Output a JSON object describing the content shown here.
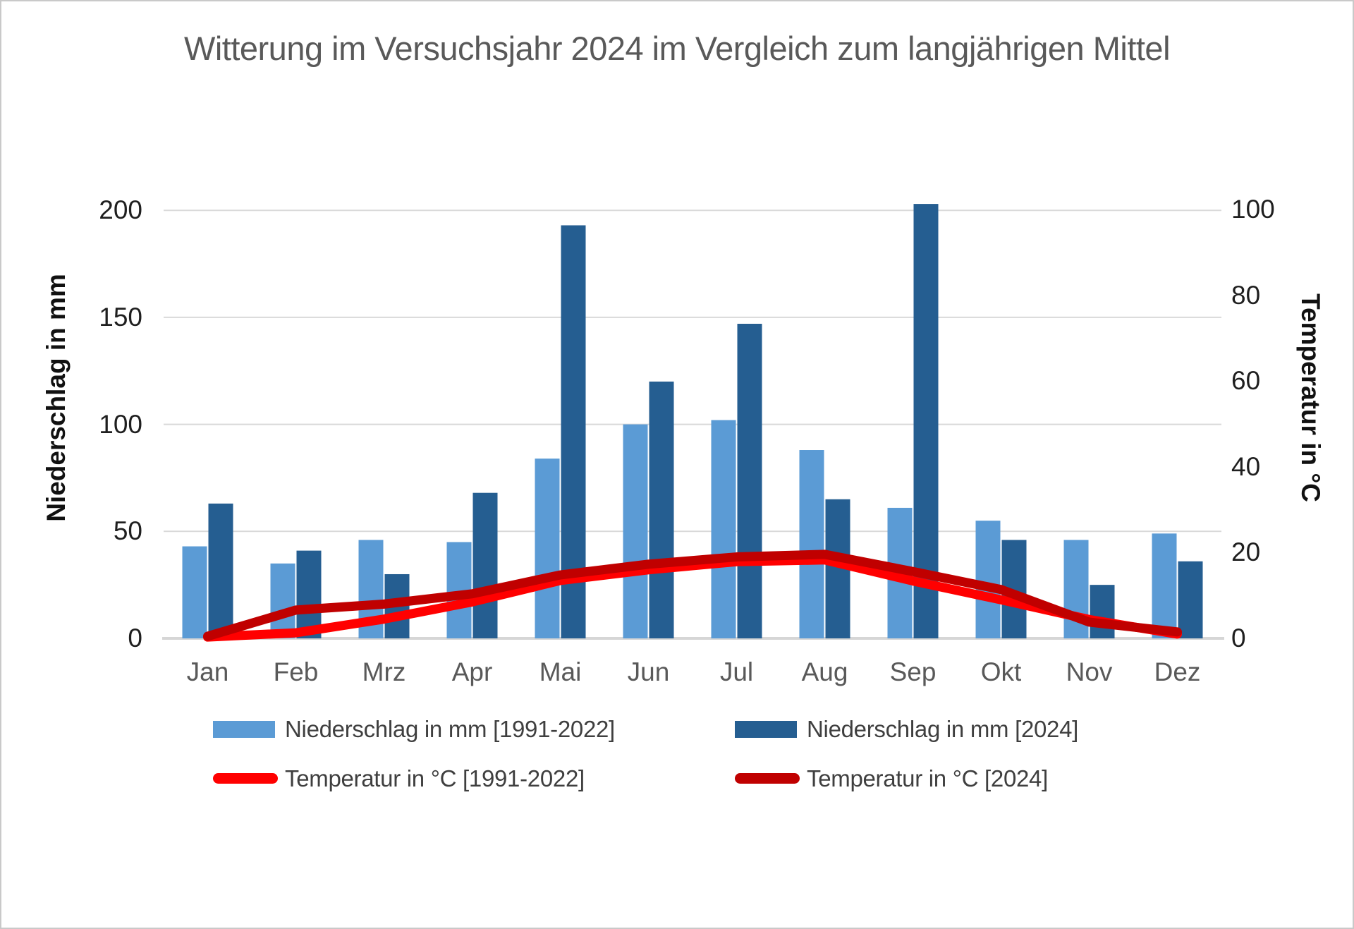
{
  "title": "Witterung im Versuchsjahr 2024 im Vergleich zum langjährigen Mittel",
  "axes": {
    "left_title": "Niederschlag in mm",
    "right_title": "Temperatur in °C",
    "left_ticks": [
      200,
      150,
      100,
      50,
      0
    ],
    "right_ticks": [
      100,
      80,
      60,
      40,
      20,
      0
    ]
  },
  "legend": {
    "items": [
      {
        "label": "Niederschlag in mm [1991-2022]",
        "swatch": "bar",
        "color": "#5B9BD5"
      },
      {
        "label": "Niederschlag in mm [2024]",
        "swatch": "bar",
        "color": "#255E91"
      },
      {
        "label": "Temperatur in °C  [1991-2022]",
        "swatch": "line",
        "color": "#FF0000"
      },
      {
        "label": "Temperatur in °C  [2024]",
        "swatch": "line",
        "color": "#C00000"
      }
    ]
  },
  "colors": {
    "precip_1991_2022": "#5B9BD5",
    "precip_2024": "#255E91",
    "temp_1991_2022": "#FF0000",
    "temp_2024": "#C00000",
    "gridline": "#D9D9D9",
    "baseline": "#D6D6D6",
    "title_text": "#595959",
    "month_text": "#595959",
    "tick_text": "#1f1f1f"
  },
  "chart_data": {
    "type": "bar",
    "subtype": "grouped-bars-with-lines",
    "title": "Witterung im Versuchsjahr 2024 im Vergleich zum langjährigen Mittel",
    "categories": [
      "Jan",
      "Feb",
      "Mrz",
      "Apr",
      "Mai",
      "Jun",
      "Jul",
      "Aug",
      "Sep",
      "Okt",
      "Nov",
      "Dez"
    ],
    "left_axis": {
      "label": "Niederschlag in mm",
      "ylim": [
        0,
        200
      ],
      "tick_step": 50
    },
    "right_axis": {
      "label": "Temperatur in °C",
      "ylim": [
        0,
        100
      ],
      "tick_step": 20
    },
    "grid": "horizontal",
    "legend_position": "bottom",
    "series": [
      {
        "name": "Niederschlag in mm [1991-2022]",
        "type": "bar",
        "axis": "left",
        "color": "#5B9BD5",
        "values": [
          43,
          35,
          46,
          45,
          84,
          100,
          102,
          88,
          61,
          55,
          46,
          49
        ]
      },
      {
        "name": "Niederschlag in mm [2024]",
        "type": "bar",
        "axis": "left",
        "color": "#255E91",
        "values": [
          63,
          41,
          30,
          68,
          193,
          120,
          147,
          65,
          203,
          46,
          25,
          36
        ]
      },
      {
        "name": "Temperatur in °C  [1991-2022]",
        "type": "line",
        "axis": "right",
        "color": "#FF0000",
        "values": [
          0.3,
          1.3,
          4.5,
          8.5,
          13.5,
          16.0,
          17.9,
          18.3,
          13.4,
          9.0,
          4.4,
          1.0
        ]
      },
      {
        "name": "Temperatur in °C  [2024]",
        "type": "line",
        "axis": "right",
        "color": "#C00000",
        "values": [
          0.5,
          6.6,
          8.0,
          10.4,
          14.8,
          17.3,
          19.0,
          19.6,
          15.6,
          11.4,
          3.8,
          1.5
        ]
      }
    ]
  }
}
